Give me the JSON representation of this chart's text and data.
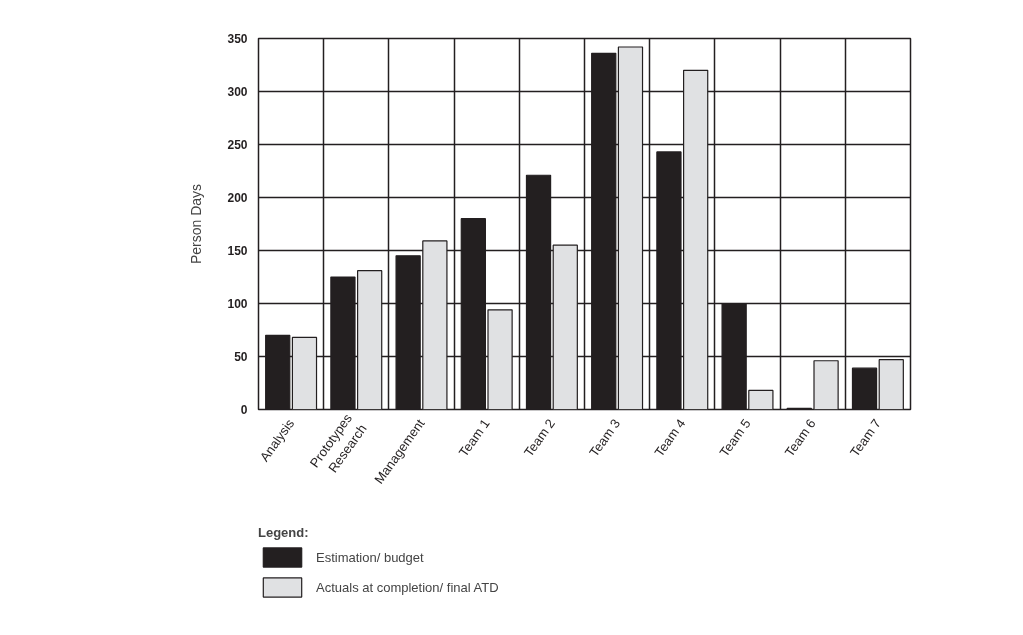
{
  "chart_data": {
    "type": "bar",
    "ylabel": "Person Days",
    "legend_title": "Legend:",
    "categories": [
      "Analysis",
      "Prototypes\nResearch",
      "Management",
      "Team 1",
      "Team 2",
      "Team 3",
      "Team 4",
      "Team 5",
      "Team 6",
      "Team 7"
    ],
    "series": [
      {
        "name": "Estimation/ budget",
        "color": "#231f20",
        "values": [
          70,
          125,
          145,
          180,
          221,
          336,
          243,
          100,
          1,
          39
        ]
      },
      {
        "name": "Actuals at completion/ final ATD",
        "color": "#e0e1e3",
        "values": [
          68,
          131,
          159,
          94,
          155,
          342,
          320,
          18,
          46,
          47
        ]
      }
    ],
    "ylim": [
      0,
      350
    ],
    "yticks": [
      0,
      50,
      100,
      150,
      200,
      250,
      300,
      350
    ],
    "grid": true,
    "legend": "bottom left"
  }
}
